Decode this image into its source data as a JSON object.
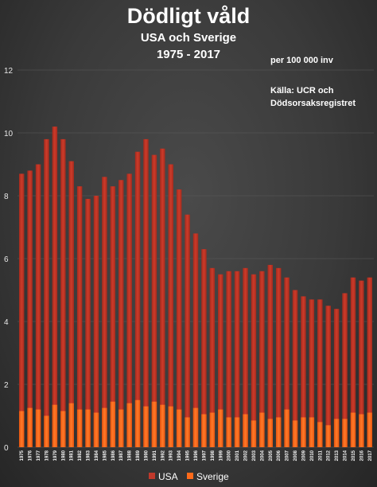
{
  "chart_data": {
    "type": "bar",
    "title": "Dödligt våld",
    "subtitle_line1": "USA och Sverige",
    "subtitle_line2": "1975 - 2017",
    "unit_note": "per 100 000 inv",
    "source_line1": "Källa: UCR och",
    "source_line2": "Dödsorsaksregistret",
    "ylim": [
      0,
      12
    ],
    "yticks": [
      "0",
      "2",
      "4",
      "6",
      "8",
      "10",
      "12"
    ],
    "grid": true,
    "legend_position": "bottom",
    "categories": [
      "1975",
      "1976",
      "1977",
      "1978",
      "1979",
      "1980",
      "1981",
      "1982",
      "1983",
      "1984",
      "1985",
      "1986",
      "1987",
      "1988",
      "1989",
      "1990",
      "1991",
      "1992",
      "1993",
      "1994",
      "1995",
      "1996",
      "1997",
      "1998",
      "1999",
      "2000",
      "2001",
      "2002",
      "2003",
      "2004",
      "2005",
      "2006",
      "2007",
      "2008",
      "2009",
      "2010",
      "2011",
      "2012",
      "2013",
      "2014",
      "2015",
      "2016",
      "2017"
    ],
    "series": [
      {
        "name": "USA",
        "color": "#c0392b",
        "values": [
          8.7,
          8.8,
          9.0,
          9.8,
          10.2,
          9.8,
          9.1,
          8.3,
          7.9,
          8.0,
          8.6,
          8.3,
          8.5,
          8.7,
          9.4,
          9.8,
          9.3,
          9.5,
          9.0,
          8.2,
          7.4,
          6.8,
          6.3,
          5.7,
          5.5,
          5.6,
          5.6,
          5.7,
          5.5,
          5.6,
          5.8,
          5.7,
          5.4,
          5.0,
          4.8,
          4.7,
          4.7,
          4.5,
          4.4,
          4.9,
          5.4,
          5.3,
          5.4
        ]
      },
      {
        "name": "Sverige",
        "color": "#ff6a1a",
        "values": [
          1.15,
          1.25,
          1.2,
          1.0,
          1.35,
          1.15,
          1.4,
          1.2,
          1.2,
          1.1,
          1.25,
          1.45,
          1.2,
          1.4,
          1.5,
          1.3,
          1.45,
          1.35,
          1.3,
          1.2,
          0.95,
          1.25,
          1.05,
          1.1,
          1.2,
          0.95,
          0.95,
          1.05,
          0.85,
          1.1,
          0.9,
          0.95,
          1.2,
          0.85,
          0.95,
          0.95,
          0.8,
          0.7,
          0.9,
          0.9,
          1.1,
          1.05,
          1.1
        ]
      }
    ]
  }
}
